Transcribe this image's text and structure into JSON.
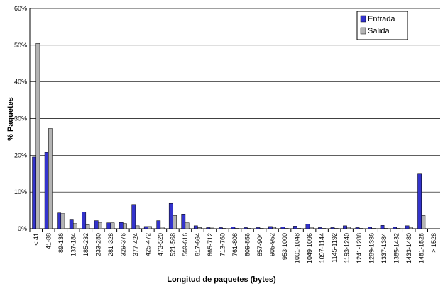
{
  "chart_data": {
    "type": "bar",
    "x_label": "Longitud de paquetes (bytes)",
    "y_label": "% Paquetes",
    "categories": [
      "< 41",
      "41-88",
      "89-136",
      "137-184",
      "185-232",
      "233-280",
      "281-328",
      "329-376",
      "377-424",
      "425-472",
      "473-520",
      "521-568",
      "569-616",
      "617-664",
      "665-712",
      "713-760",
      "761-808",
      "809-856",
      "857-904",
      "905-952",
      "953-1000",
      "1001-1048",
      "1049-1096",
      "1097-1144",
      "1145-1192",
      "1193-1240",
      "1241-1288",
      "1289-1336",
      "1337-1384",
      "1385-1432",
      "1433-1480",
      "1481-1528",
      "> 1528"
    ],
    "series": [
      {
        "name": "Entrada",
        "color": "#3333cc",
        "values": [
          19.5,
          20.8,
          4.3,
          2.4,
          4.5,
          2.2,
          1.6,
          1.7,
          6.6,
          0.6,
          2.2,
          6.9,
          4.0,
          0.8,
          0.3,
          0.3,
          0.5,
          0.3,
          0.3,
          0.6,
          0.5,
          0.7,
          1.2,
          0.3,
          0.3,
          0.8,
          0.3,
          0.4,
          0.9,
          0.4,
          0.8,
          14.9,
          0
        ]
      },
      {
        "name": "Salida",
        "color": "#b4b4b4",
        "values": [
          50.5,
          27.3,
          4.1,
          1.4,
          1.1,
          1.6,
          1.6,
          1.4,
          0.8,
          0.6,
          0.5,
          3.6,
          1.6,
          0.3,
          0.2,
          0.1,
          0.1,
          0.1,
          0.1,
          0.4,
          0.1,
          0.1,
          0.4,
          0.1,
          0.1,
          0.4,
          0.1,
          0.1,
          0.1,
          0.1,
          0.4,
          3.6,
          0
        ]
      }
    ],
    "ylim": [
      0,
      60
    ],
    "yticks": [
      {
        "value": 0,
        "label": "0%"
      },
      {
        "value": 10,
        "label": "10%"
      },
      {
        "value": 20,
        "label": "20%"
      },
      {
        "value": 30,
        "label": "30%"
      },
      {
        "value": 40,
        "label": "40%"
      },
      {
        "value": 50,
        "label": "50%"
      },
      {
        "value": 60,
        "label": "60%"
      }
    ],
    "grid": true,
    "legend_position": "top-right"
  }
}
